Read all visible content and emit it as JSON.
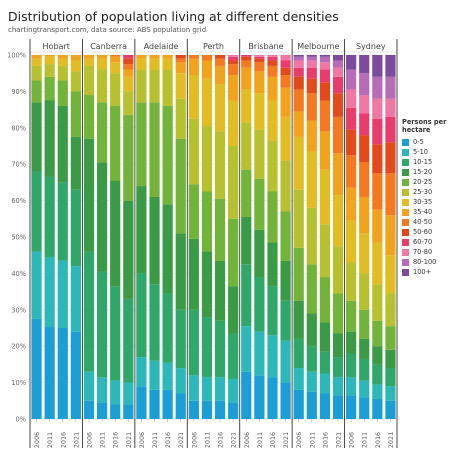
{
  "title": "Distribution of population living at different densities",
  "subtitle": "chartingtransport.com, data source: ABS population grid",
  "chart_data": {
    "type": "bar",
    "stacked": true,
    "ylim": [
      0,
      100
    ],
    "yticks": [
      "0%",
      "10%",
      "20%",
      "30%",
      "40%",
      "50%",
      "60%",
      "70%",
      "80%",
      "90%",
      "100%"
    ],
    "grid": true,
    "legend_position": "right",
    "legend_title": "Persons per hectare",
    "bands": [
      "0-5",
      "5-10",
      "10-15",
      "15-20",
      "20-25",
      "25-30",
      "30-35",
      "35-40",
      "40-50",
      "50-60",
      "60-70",
      "70-80",
      "80-100",
      "100+"
    ],
    "band_colors": [
      "#1a9ed4",
      "#2cb8b8",
      "#2ea768",
      "#3a9a45",
      "#72b33a",
      "#b7c130",
      "#e1bc22",
      "#f2a31d",
      "#f47a22",
      "#e24a1c",
      "#e83c6c",
      "#ef78a3",
      "#b86bb6",
      "#7d4b9e"
    ],
    "years": [
      "2006",
      "2011",
      "2016",
      "2021"
    ],
    "cities": [
      {
        "name": "Hobart",
        "bars": [
          [
            27.5,
            18.5,
            22.0,
            19.0,
            6.0,
            4.0,
            2.0,
            1.0,
            0,
            0,
            0,
            0,
            0,
            0
          ],
          [
            25.5,
            19.0,
            22.0,
            21.0,
            6.5,
            3.5,
            2.0,
            0.5,
            0,
            0,
            0,
            0,
            0,
            0
          ],
          [
            25.0,
            18.5,
            21.5,
            21.0,
            7.0,
            4.0,
            2.0,
            1.0,
            0,
            0,
            0,
            0,
            0,
            0
          ],
          [
            24.0,
            18.0,
            21.0,
            14.5,
            12.5,
            5.5,
            3.0,
            1.5,
            0,
            0,
            0,
            0,
            0,
            0
          ]
        ]
      },
      {
        "name": "Canberra",
        "bars": [
          [
            5.0,
            8.0,
            33.0,
            31.0,
            12.0,
            8.0,
            2.0,
            1.0,
            0,
            0,
            0,
            0,
            0,
            0
          ],
          [
            4.5,
            7.0,
            29.0,
            30.0,
            16.5,
            9.0,
            3.0,
            1.0,
            0,
            0,
            0,
            0,
            0,
            0
          ],
          [
            4.0,
            6.5,
            26.0,
            29.0,
            20.5,
            9.0,
            3.0,
            1.5,
            0.5,
            0,
            0,
            0,
            0,
            0
          ],
          [
            4.0,
            6.0,
            23.0,
            27.0,
            23.5,
            6.5,
            4.0,
            2.0,
            1.5,
            1.5,
            1.0,
            0,
            0,
            0
          ]
        ]
      },
      {
        "name": "Adelaide",
        "bars": [
          [
            9.0,
            8.0,
            23.0,
            24.0,
            23.0,
            9.0,
            3.0,
            1.0,
            0,
            0,
            0,
            0,
            0,
            0
          ],
          [
            8.0,
            8.0,
            21.0,
            24.0,
            26.0,
            9.0,
            3.0,
            1.0,
            0,
            0,
            0,
            0,
            0,
            0
          ],
          [
            8.0,
            7.5,
            19.0,
            24.5,
            27.0,
            10.0,
            3.0,
            1.0,
            0,
            0,
            0,
            0,
            0,
            0
          ],
          [
            7.0,
            7.0,
            16.0,
            21.0,
            26.0,
            11.0,
            7.0,
            3.0,
            1.0,
            1.0,
            0,
            0,
            0,
            0
          ]
        ]
      },
      {
        "name": "Perth",
        "bars": [
          [
            5.0,
            7.0,
            18.0,
            19.5,
            15.0,
            18.0,
            12.0,
            4.5,
            1.0,
            0,
            0,
            0,
            0,
            0
          ],
          [
            5.0,
            6.5,
            16.5,
            18.0,
            16.5,
            18.0,
            13.0,
            5.0,
            1.5,
            0,
            0,
            0,
            0,
            0
          ],
          [
            5.0,
            6.5,
            15.5,
            16.5,
            17.0,
            18.5,
            13.0,
            5.0,
            2.0,
            1.0,
            0,
            0,
            0,
            0
          ],
          [
            4.5,
            6.5,
            12.5,
            13.0,
            18.5,
            20.0,
            12.5,
            7.0,
            3.0,
            1.0,
            1.0,
            0.5,
            0,
            0
          ]
        ]
      },
      {
        "name": "Brisbane",
        "bars": [
          [
            13.0,
            12.5,
            17.0,
            13.0,
            13.0,
            13.0,
            9.0,
            6.0,
            2.0,
            1.0,
            0.5,
            0,
            0,
            0
          ],
          [
            12.0,
            12.0,
            15.0,
            13.0,
            14.0,
            13.5,
            10.0,
            6.0,
            2.5,
            1.0,
            0.5,
            0.5,
            0,
            0
          ],
          [
            11.5,
            11.5,
            13.5,
            12.0,
            14.0,
            14.0,
            11.0,
            6.5,
            3.0,
            1.5,
            1.0,
            0.5,
            0,
            0
          ],
          [
            10.0,
            11.5,
            11.0,
            11.0,
            13.5,
            14.0,
            12.0,
            8.0,
            3.5,
            2.0,
            2.0,
            1.5,
            0,
            0
          ]
        ]
      },
      {
        "name": "Melbourne",
        "bars": [
          [
            8.0,
            6.0,
            8.0,
            10.5,
            14.5,
            16.0,
            14.5,
            7.0,
            6.0,
            3.5,
            2.5,
            2.0,
            1.0,
            0.5
          ],
          [
            7.5,
            5.5,
            7.0,
            9.0,
            13.5,
            15.5,
            15.5,
            8.5,
            7.5,
            4.0,
            3.0,
            2.0,
            1.0,
            0.5
          ],
          [
            7.0,
            5.5,
            6.0,
            8.0,
            12.5,
            14.5,
            15.0,
            10.5,
            8.5,
            5.0,
            3.5,
            2.0,
            1.5,
            0.5
          ],
          [
            6.5,
            5.0,
            5.5,
            6.5,
            11.0,
            13.0,
            14.0,
            11.5,
            10.0,
            6.5,
            4.5,
            2.5,
            2.0,
            1.5
          ]
        ]
      },
      {
        "name": "Sydney",
        "bars": [
          [
            6.5,
            5.0,
            6.5,
            6.0,
            8.5,
            10.5,
            11.5,
            9.0,
            9.0,
            7.0,
            6.0,
            5.0,
            5.5,
            4.0
          ],
          [
            6.0,
            4.5,
            6.0,
            5.5,
            8.0,
            10.0,
            11.0,
            10.0,
            9.5,
            7.5,
            6.0,
            5.0,
            6.0,
            5.0
          ],
          [
            5.5,
            4.0,
            5.5,
            5.0,
            7.0,
            10.0,
            11.5,
            9.0,
            10.0,
            8.0,
            7.0,
            5.5,
            6.0,
            6.0
          ],
          [
            5.0,
            4.0,
            5.0,
            5.0,
            6.5,
            9.0,
            10.5,
            11.0,
            11.5,
            8.5,
            7.0,
            5.0,
            6.0,
            6.0
          ]
        ]
      }
    ]
  }
}
